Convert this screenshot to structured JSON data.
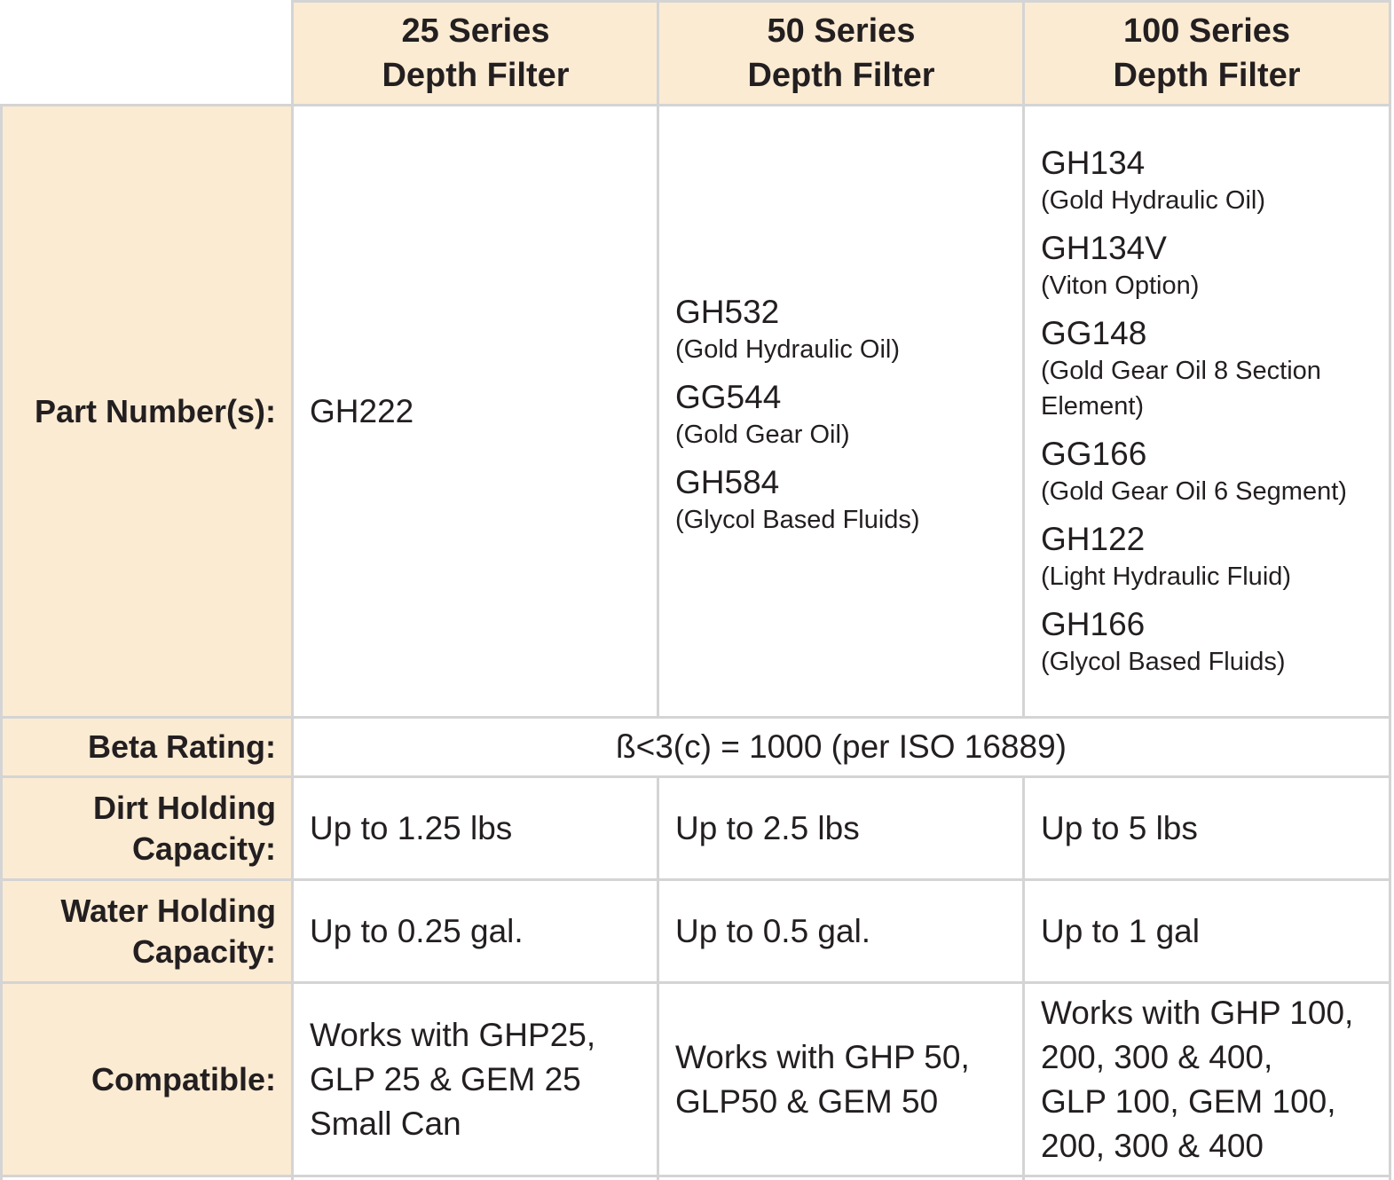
{
  "table": {
    "columns": [
      {
        "line1": "25 Series",
        "line2": "Depth Filter"
      },
      {
        "line1": "50 Series",
        "line2": "Depth Filter"
      },
      {
        "line1": "100 Series",
        "line2": "Depth Filter"
      }
    ],
    "rows": {
      "part_numbers": {
        "label": "Part Number(s):",
        "col1": [
          {
            "code": "GH222",
            "desc": ""
          }
        ],
        "col2": [
          {
            "code": "GH532",
            "desc": "(Gold Hydraulic Oil)"
          },
          {
            "code": "GG544",
            "desc": "(Gold Gear Oil)"
          },
          {
            "code": "GH584",
            "desc": "(Glycol Based Fluids)"
          }
        ],
        "col3": [
          {
            "code": "GH134",
            "desc": "(Gold Hydraulic Oil)"
          },
          {
            "code": "GH134V",
            "desc": "(Viton Option)"
          },
          {
            "code": "GG148",
            "desc": "(Gold Gear Oil 8 Section Element)"
          },
          {
            "code": "GG166",
            "desc": "(Gold Gear Oil 6 Segment)"
          },
          {
            "code": "GH122",
            "desc": "(Light Hydraulic Fluid)"
          },
          {
            "code": "GH166",
            "desc": "(Glycol Based Fluids)"
          }
        ]
      },
      "beta_rating": {
        "label": "Beta Rating:",
        "value": "ß<3(c) = 1000 (per ISO 16889)"
      },
      "dirt_holding": {
        "label_line1": "Dirt Holding",
        "label_line2": "Capacity:",
        "values": [
          "Up to 1.25 lbs",
          "Up to 2.5 lbs",
          "Up to 5 lbs"
        ]
      },
      "water_holding": {
        "label_line1": "Water Holding",
        "label_line2": "Capacity:",
        "values": [
          "Up to 0.25 gal.",
          "Up to 0.5 gal.",
          "Up to 1 gal"
        ]
      },
      "compatible": {
        "label": "Compatible:",
        "values": [
          [
            "Works with GHP25,",
            "GLP 25 & GEM 25",
            "Small Can"
          ],
          [
            "Works with GHP 50,",
            "GLP50 & GEM 50"
          ],
          [
            "Works with GHP 100,",
            "200, 300 & 400,",
            "GLP 100, GEM 100,",
            "200, 300 & 400"
          ]
        ]
      }
    },
    "colors": {
      "header_bg": "#fbebd3",
      "border": "#d4d4d4",
      "text": "#231f20"
    }
  }
}
